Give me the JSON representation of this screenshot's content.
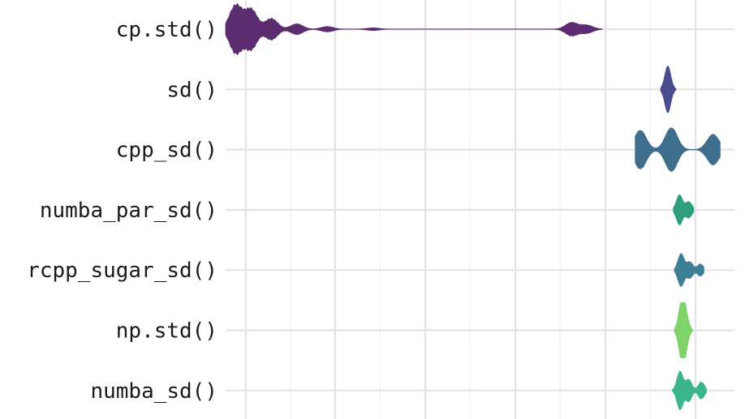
{
  "chart_data": {
    "type": "violin",
    "title": "",
    "xlabel": "",
    "ylabel": "",
    "xscale": "log",
    "grid": true,
    "legend": "none",
    "categories": [
      "cp.std()",
      "sd()",
      "cpp_sd()",
      "numba_par_sd()",
      "rcpp_sugar_sd()",
      "np.std()",
      "numba_sd()"
    ],
    "series": [
      {
        "category": "cp.std()",
        "color": "#5b2c6f",
        "peaks": [
          [
            0.02,
            0.9
          ],
          [
            0.05,
            0.75
          ],
          [
            0.09,
            0.4
          ],
          [
            0.14,
            0.2
          ],
          [
            0.2,
            0.1
          ],
          [
            0.29,
            0.05
          ],
          [
            0.68,
            0.25
          ],
          [
            0.71,
            0.15
          ]
        ],
        "range": [
          0.0,
          0.74
        ]
      },
      {
        "category": "sd()",
        "color": "#4b4b8f",
        "peaks": [
          [
            0.869,
            0.85
          ]
        ],
        "range": [
          0.855,
          0.885
        ]
      },
      {
        "category": "cpp_sd()",
        "color": "#3f6e8c",
        "peaks": [
          [
            0.815,
            0.7
          ],
          [
            0.876,
            0.8
          ],
          [
            0.958,
            0.55
          ]
        ],
        "range": [
          0.805,
          0.972
        ]
      },
      {
        "category": "numba_par_sd()",
        "color": "#2f9e7f",
        "peaks": [
          [
            0.892,
            0.55
          ],
          [
            0.91,
            0.3
          ]
        ],
        "range": [
          0.88,
          0.92
        ]
      },
      {
        "category": "rcpp_sugar_sd()",
        "color": "#3e7f95",
        "peaks": [
          [
            0.895,
            0.6
          ],
          [
            0.912,
            0.3
          ],
          [
            0.933,
            0.2
          ]
        ],
        "range": [
          0.882,
          0.94
        ]
      },
      {
        "category": "np.std()",
        "color": "#7ed36a",
        "peaks": [
          [
            0.896,
            0.9
          ],
          [
            0.903,
            0.6
          ]
        ],
        "range": [
          0.882,
          0.918
        ]
      },
      {
        "category": "numba_sd()",
        "color": "#3db58a",
        "peaks": [
          [
            0.893,
            0.7
          ],
          [
            0.91,
            0.4
          ],
          [
            0.935,
            0.3
          ]
        ],
        "range": [
          0.878,
          0.945
        ]
      }
    ]
  }
}
